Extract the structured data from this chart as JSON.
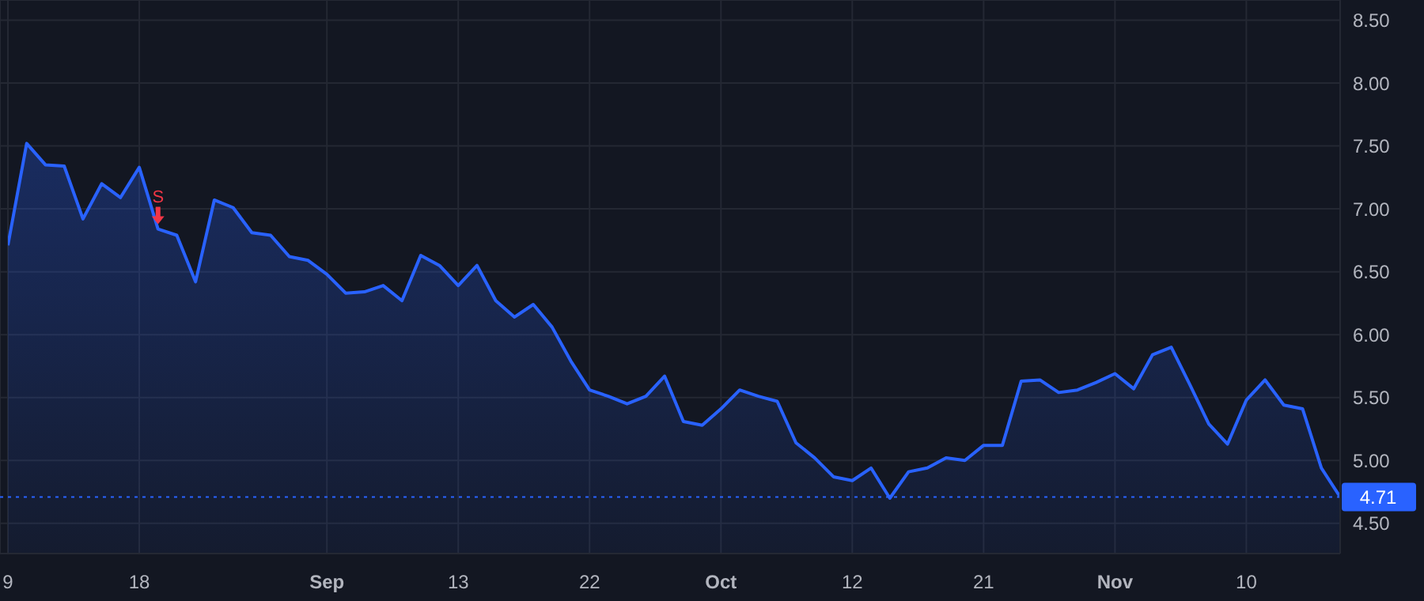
{
  "chart_data": {
    "type": "area",
    "categories": [
      "9",
      null,
      null,
      null,
      null,
      null,
      null,
      "18",
      null,
      null,
      null,
      null,
      null,
      null,
      null,
      null,
      null,
      "Sep",
      null,
      null,
      null,
      null,
      null,
      null,
      "13",
      null,
      null,
      null,
      null,
      null,
      null,
      "22",
      null,
      null,
      null,
      null,
      null,
      null,
      "Oct",
      null,
      null,
      null,
      null,
      null,
      null,
      "12",
      null,
      null,
      null,
      null,
      null,
      null,
      "21",
      null,
      null,
      null,
      null,
      null,
      null,
      "Nov",
      null,
      null,
      null,
      null,
      null,
      null,
      "10",
      null,
      null,
      null,
      null,
      null
    ],
    "series": [
      {
        "color": "#2962ff",
        "values": [
          6.71,
          7.52,
          7.35,
          7.34,
          6.92,
          7.2,
          7.09,
          7.33,
          6.84,
          6.79,
          6.42,
          7.07,
          7.01,
          6.81,
          6.79,
          6.62,
          6.59,
          6.48,
          6.33,
          6.34,
          6.39,
          6.27,
          6.63,
          6.55,
          6.39,
          6.55,
          6.27,
          6.14,
          6.24,
          6.06,
          5.79,
          5.56,
          5.51,
          5.45,
          5.51,
          5.67,
          5.31,
          5.28,
          5.41,
          5.56,
          5.51,
          5.47,
          5.14,
          5.02,
          4.87,
          4.84,
          4.94,
          4.7,
          4.91,
          4.94,
          5.02,
          5.0,
          5.12,
          5.12,
          5.63,
          5.64,
          5.54,
          5.56,
          5.62,
          5.69,
          5.57,
          5.84,
          5.9,
          5.6,
          5.29,
          5.13,
          5.48,
          5.64,
          5.44,
          5.41,
          4.94,
          4.71
        ]
      }
    ],
    "ylim": [
      4.26,
      8.66
    ],
    "yticks": [
      {
        "value": 4.5,
        "label": "4.50"
      },
      {
        "value": 5,
        "label": "5.00"
      },
      {
        "value": 5.5,
        "label": "5.50"
      },
      {
        "value": 6,
        "label": "6.00"
      },
      {
        "value": 6.5,
        "label": "6.50"
      },
      {
        "value": 7,
        "label": "7.00"
      },
      {
        "value": 7.5,
        "label": "7.50"
      },
      {
        "value": 8,
        "label": "8.00"
      },
      {
        "value": 8.5,
        "label": "8.50"
      }
    ],
    "ref_lines": [
      {
        "axis": "y",
        "value": 4.71,
        "label": "4.71",
        "color": "#2962ff",
        "line_style": "dotted"
      }
    ],
    "annotations": [
      {
        "text": "S",
        "y": 6.84
      }
    ],
    "grid": true,
    "marker": "none",
    "line_style": "solid"
  }
}
